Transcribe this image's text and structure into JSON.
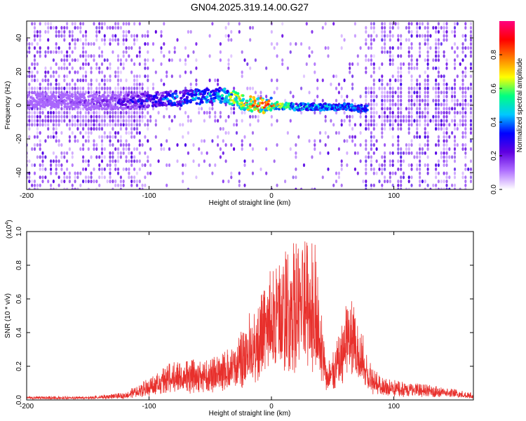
{
  "title": "GN04.2025.319.14.00.G27",
  "chart_data": [
    {
      "type": "heatmap",
      "xlabel": "Height of straight line (km)",
      "ylabel": "Frequency (Hz)",
      "xlim": [
        -200,
        165
      ],
      "ylim": [
        -50,
        50
      ],
      "xticks": [
        -200,
        -100,
        0,
        100
      ],
      "yticks": [
        -40,
        -20,
        0,
        20,
        40
      ],
      "colorbar": {
        "label": "Normalized spectral amplitude",
        "range": [
          0,
          1
        ],
        "ticks": [
          "0.0",
          "0.2",
          "0.4",
          "0.6",
          "0.8"
        ],
        "colors": [
          "#ffffff",
          "#b070ff",
          "#6000e0",
          "#0000ff",
          "#00c8ff",
          "#00ff80",
          "#ffff00",
          "#ff8000",
          "#ff0000",
          "#ff0080"
        ]
      },
      "ridge": [
        {
          "x": -195,
          "f": 3,
          "amp": 0.15
        },
        {
          "x": -150,
          "f": 2,
          "amp": 0.2
        },
        {
          "x": -120,
          "f": 2,
          "amp": 0.3
        },
        {
          "x": -100,
          "f": 3,
          "amp": 0.38
        },
        {
          "x": -80,
          "f": 4,
          "amp": 0.45
        },
        {
          "x": -60,
          "f": 5,
          "amp": 0.5
        },
        {
          "x": -40,
          "f": 6,
          "amp": 0.55
        },
        {
          "x": -25,
          "f": 2,
          "amp": 0.9
        },
        {
          "x": -10,
          "f": 0,
          "amp": 0.9
        },
        {
          "x": 0,
          "f": 0,
          "amp": 0.85
        },
        {
          "x": 20,
          "f": -1,
          "amp": 0.5
        },
        {
          "x": 40,
          "f": -1,
          "amp": 0.5
        },
        {
          "x": 60,
          "f": -1,
          "amp": 0.45
        },
        {
          "x": 75,
          "f": -2,
          "amp": 0.45
        }
      ]
    },
    {
      "type": "line",
      "xlabel": "Height of straight line (km)",
      "ylabel": "SNR (10 * v/v)",
      "multiplier_label": "(x10",
      "multiplier_exp": "4",
      "xlim": [
        -200,
        165
      ],
      "ylim": [
        0,
        1.0
      ],
      "xticks": [
        -200,
        -100,
        0,
        100
      ],
      "yticks": [
        "0.0",
        "0.2",
        "0.4",
        "0.6",
        "0.8",
        "1.0"
      ],
      "color": "#e8302c",
      "envelope": [
        {
          "x": -200,
          "y": 0.02
        },
        {
          "x": -150,
          "y": 0.02
        },
        {
          "x": -120,
          "y": 0.04
        },
        {
          "x": -100,
          "y": 0.12
        },
        {
          "x": -85,
          "y": 0.2
        },
        {
          "x": -70,
          "y": 0.22
        },
        {
          "x": -50,
          "y": 0.22
        },
        {
          "x": -30,
          "y": 0.3
        },
        {
          "x": -20,
          "y": 0.45
        },
        {
          "x": -10,
          "y": 0.55
        },
        {
          "x": 0,
          "y": 0.72
        },
        {
          "x": 10,
          "y": 0.8
        },
        {
          "x": 20,
          "y": 0.87
        },
        {
          "x": 30,
          "y": 0.9
        },
        {
          "x": 36,
          "y": 0.86
        },
        {
          "x": 40,
          "y": 0.55
        },
        {
          "x": 45,
          "y": 0.2
        },
        {
          "x": 50,
          "y": 0.25
        },
        {
          "x": 55,
          "y": 0.35
        },
        {
          "x": 62,
          "y": 0.55
        },
        {
          "x": 66,
          "y": 0.6
        },
        {
          "x": 72,
          "y": 0.45
        },
        {
          "x": 78,
          "y": 0.25
        },
        {
          "x": 90,
          "y": 0.12
        },
        {
          "x": 110,
          "y": 0.1
        },
        {
          "x": 130,
          "y": 0.08
        },
        {
          "x": 150,
          "y": 0.06
        },
        {
          "x": 165,
          "y": 0.04
        }
      ]
    }
  ]
}
